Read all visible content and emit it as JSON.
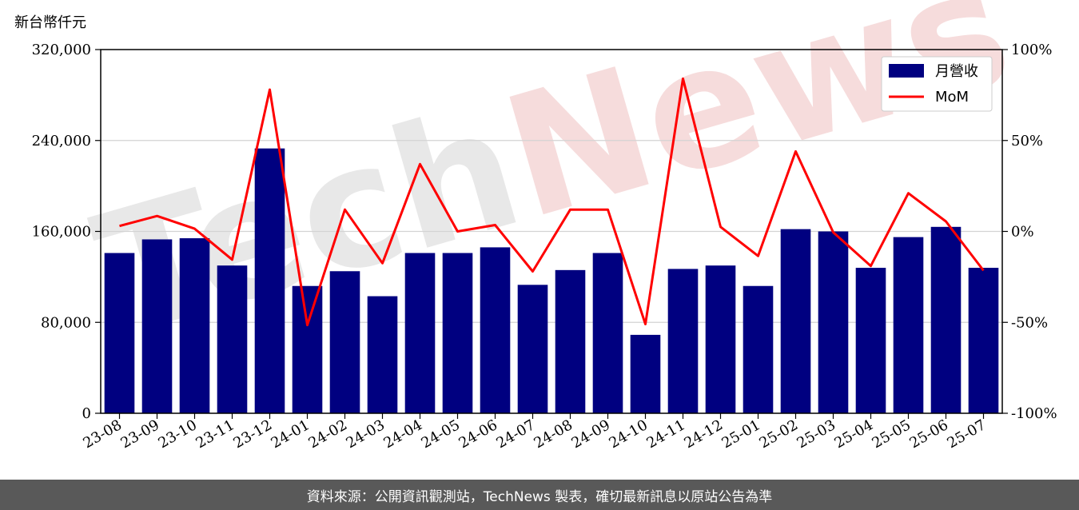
{
  "unit_label": "新台幣仟元",
  "footer_text": "資料來源：公開資訊觀測站，TechNews 製表，確切最新訊息以原站公告為準",
  "watermark": {
    "part1": "Tech",
    "part2": "News"
  },
  "colors": {
    "bar": "#000080",
    "line": "#ff0000",
    "grid": "#d3d3d3",
    "footer_bg": "#595959"
  },
  "chart_data": {
    "type": "bar+line",
    "categories": [
      "23-08",
      "23-09",
      "23-10",
      "23-11",
      "23-12",
      "24-01",
      "24-02",
      "24-03",
      "24-04",
      "24-05",
      "24-06",
      "24-07",
      "24-08",
      "24-09",
      "24-10",
      "24-11",
      "24-12",
      "25-01",
      "25-02",
      "25-03",
      "25-04",
      "25-05",
      "25-06",
      "25-07"
    ],
    "series": [
      {
        "name": "月營收",
        "type": "bar",
        "axis": "left",
        "values": [
          141000,
          153000,
          154000,
          130000,
          233000,
          112000,
          125000,
          103000,
          141000,
          141000,
          146000,
          113000,
          126000,
          141000,
          69000,
          127000,
          130000,
          112000,
          162000,
          160000,
          128000,
          155000,
          164000,
          128000
        ]
      },
      {
        "name": "MoM",
        "type": "line",
        "axis": "right",
        "values": [
          3,
          8.5,
          1.5,
          -15.5,
          78,
          -51.5,
          12,
          -17.5,
          37,
          0,
          3.5,
          -22,
          12,
          12,
          -51,
          84,
          2.5,
          -13.5,
          44,
          -0.5,
          -19,
          21,
          5.5,
          -21.5
        ]
      }
    ],
    "ylim_left": [
      0,
      320000
    ],
    "yticks_left": [
      "0",
      "80,000",
      "160,000",
      "240,000",
      "320,000"
    ],
    "ylim_right": [
      -100,
      100
    ],
    "yticks_right": [
      "-100%",
      "-50%",
      "0%",
      "50%",
      "100%"
    ],
    "grid": true,
    "legend_position": "top-right"
  }
}
